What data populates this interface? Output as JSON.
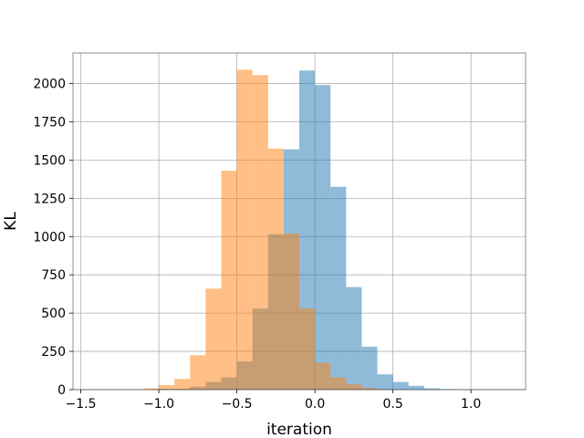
{
  "chart_data": {
    "type": "bar",
    "title": "",
    "xlabel": "iteration",
    "ylabel": "KL",
    "xlim": [
      -1.55,
      1.35
    ],
    "ylim": [
      0,
      2200
    ],
    "x_ticks": [
      -1.5,
      -1.0,
      -0.5,
      0.0,
      0.5,
      1.0
    ],
    "x_tick_labels": [
      "−1.5",
      "−1.0",
      "−0.5",
      "0.0",
      "0.5",
      "1.0"
    ],
    "y_ticks": [
      0,
      250,
      500,
      750,
      1000,
      1250,
      1500,
      1750,
      2000
    ],
    "y_tick_labels": [
      "0",
      "250",
      "500",
      "750",
      "1000",
      "1250",
      "1500",
      "1750",
      "2000"
    ],
    "grid": true,
    "legend": "none",
    "series": [
      {
        "color": "#1f77b4",
        "opacity": 0.5,
        "bins": [
          {
            "x0": -1.0,
            "x1": -0.9,
            "value": 5
          },
          {
            "x0": -0.9,
            "x1": -0.8,
            "value": 5
          },
          {
            "x0": -0.8,
            "x1": -0.7,
            "value": 20
          },
          {
            "x0": -0.7,
            "x1": -0.6,
            "value": 50
          },
          {
            "x0": -0.6,
            "x1": -0.5,
            "value": 80
          },
          {
            "x0": -0.5,
            "x1": -0.4,
            "value": 185
          },
          {
            "x0": -0.4,
            "x1": -0.3,
            "value": 530
          },
          {
            "x0": -0.3,
            "x1": -0.2,
            "value": 1015
          },
          {
            "x0": -0.2,
            "x1": -0.1,
            "value": 1570
          },
          {
            "x0": -0.1,
            "x1": 0.0,
            "value": 2085
          },
          {
            "x0": 0.0,
            "x1": 0.1,
            "value": 1990
          },
          {
            "x0": 0.1,
            "x1": 0.2,
            "value": 1325
          },
          {
            "x0": 0.2,
            "x1": 0.3,
            "value": 670
          },
          {
            "x0": 0.3,
            "x1": 0.4,
            "value": 280
          },
          {
            "x0": 0.4,
            "x1": 0.5,
            "value": 100
          },
          {
            "x0": 0.5,
            "x1": 0.6,
            "value": 50
          },
          {
            "x0": 0.6,
            "x1": 0.7,
            "value": 25
          },
          {
            "x0": 0.7,
            "x1": 0.8,
            "value": 8
          },
          {
            "x0": 0.8,
            "x1": 0.9,
            "value": 3
          },
          {
            "x0": 0.9,
            "x1": 1.0,
            "value": 1
          }
        ]
      },
      {
        "color": "#ff7f0e",
        "opacity": 0.5,
        "bins": [
          {
            "x0": -1.2,
            "x1": -1.1,
            "value": 2
          },
          {
            "x0": -1.1,
            "x1": -1.0,
            "value": 8
          },
          {
            "x0": -1.0,
            "x1": -0.9,
            "value": 30
          },
          {
            "x0": -0.9,
            "x1": -0.8,
            "value": 70
          },
          {
            "x0": -0.8,
            "x1": -0.7,
            "value": 225
          },
          {
            "x0": -0.7,
            "x1": -0.6,
            "value": 660
          },
          {
            "x0": -0.6,
            "x1": -0.5,
            "value": 1430
          },
          {
            "x0": -0.5,
            "x1": -0.4,
            "value": 2090
          },
          {
            "x0": -0.4,
            "x1": -0.3,
            "value": 2055
          },
          {
            "x0": -0.3,
            "x1": -0.2,
            "value": 1575
          },
          {
            "x0": -0.2,
            "x1": -0.1,
            "value": 1020
          },
          {
            "x0": -0.1,
            "x1": 0.0,
            "value": 530
          },
          {
            "x0": 0.0,
            "x1": 0.1,
            "value": 175
          },
          {
            "x0": 0.1,
            "x1": 0.2,
            "value": 80
          },
          {
            "x0": 0.2,
            "x1": 0.3,
            "value": 35
          },
          {
            "x0": 0.3,
            "x1": 0.4,
            "value": 10
          }
        ]
      }
    ]
  }
}
